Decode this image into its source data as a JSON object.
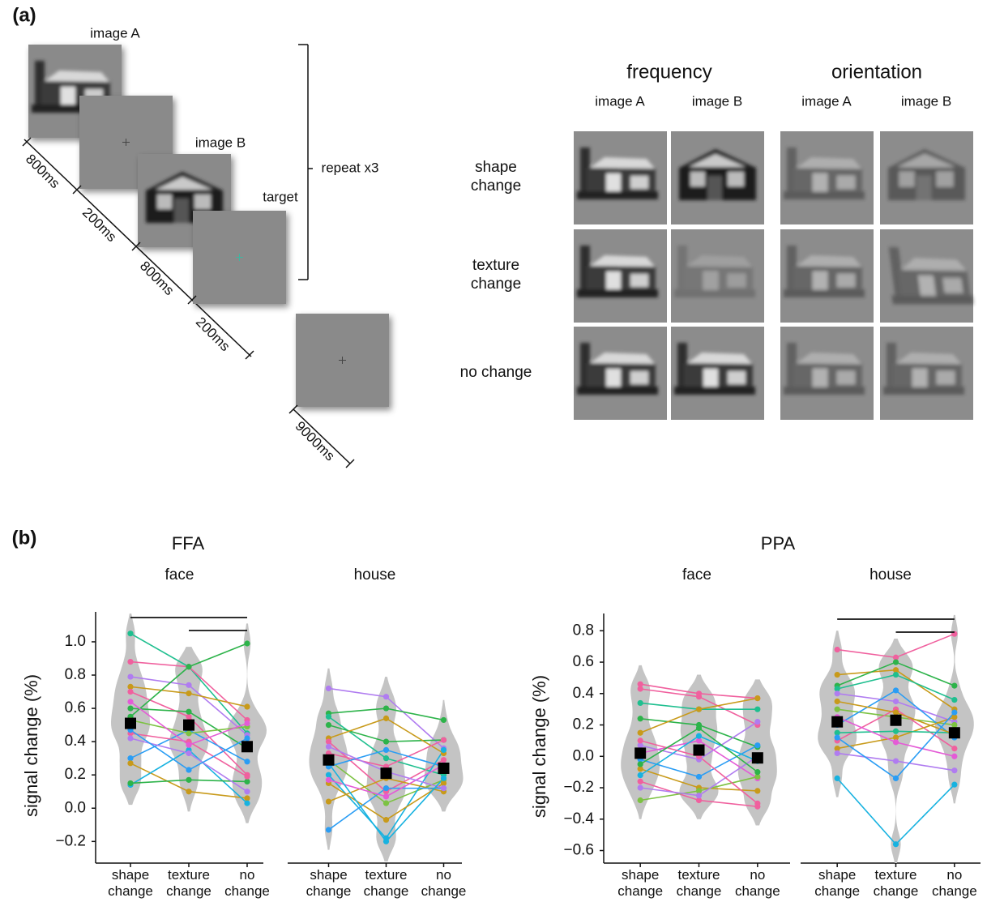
{
  "panel_a": {
    "label": "(a)",
    "sequence": {
      "screens": [
        "image A",
        "image B",
        "target"
      ],
      "durations": [
        "800ms",
        "200ms",
        "800ms",
        "200ms",
        "9000ms"
      ],
      "repeat": "repeat x3"
    },
    "conditions": {
      "groups": [
        "frequency",
        "orientation"
      ],
      "columns": [
        "image A",
        "image B",
        "image A",
        "image B"
      ],
      "rows": [
        "shape change",
        "texture change",
        "no change"
      ]
    }
  },
  "panel_b": {
    "label": "(b)",
    "regions": [
      "FFA",
      "PPA"
    ]
  },
  "chart_data": [
    {
      "type": "violin",
      "title": "face",
      "ylabel": "signal change (%)",
      "categories": [
        "shape change",
        "texture change",
        "no change"
      ],
      "ylim": [
        -0.33,
        1.18
      ],
      "yticks": [
        {
          "value": -0.2,
          "label": "−0.2"
        },
        {
          "value": 0,
          "label": "0.0"
        },
        0.2,
        0.4,
        0.6,
        0.8,
        {
          "value": 1,
          "label": "1.0"
        }
      ],
      "means": [
        0.51,
        0.5,
        0.37
      ],
      "significance": [
        [
          0,
          2
        ],
        [
          1,
          2
        ]
      ],
      "subjects": [
        {
          "color": "#1fbf8f",
          "values": [
            1.05,
            0.85,
            0.45
          ]
        },
        {
          "color": "#f0609e",
          "values": [
            0.88,
            0.85,
            0.53
          ]
        },
        {
          "color": "#b07cf0",
          "values": [
            0.79,
            0.74,
            0.44
          ]
        },
        {
          "color": "#c89a1a",
          "values": [
            0.73,
            0.69,
            0.61
          ]
        },
        {
          "color": "#f0609e",
          "values": [
            0.7,
            0.55,
            0.2
          ]
        },
        {
          "color": "#2db34a",
          "values": [
            0.6,
            0.58,
            0.36
          ]
        },
        {
          "color": "#2db34a",
          "values": [
            0.55,
            0.85,
            0.99
          ]
        },
        {
          "color": "#2a9df4",
          "values": [
            0.3,
            0.47,
            0.28
          ]
        },
        {
          "color": "#c89a1a",
          "values": [
            0.27,
            0.1,
            0.06
          ]
        },
        {
          "color": "#17b2e0",
          "values": [
            0.14,
            0.35,
            0.03
          ]
        },
        {
          "color": "#2db34a",
          "values": [
            0.15,
            0.17,
            0.16
          ]
        },
        {
          "color": "#f0609e",
          "values": [
            0.45,
            0.4,
            0.19
          ]
        },
        {
          "color": "#b07cf0",
          "values": [
            0.42,
            0.33,
            0.1
          ]
        },
        {
          "color": "#7cc242",
          "values": [
            0.53,
            0.45,
            0.49
          ]
        },
        {
          "color": "#2a9df4",
          "values": [
            0.47,
            0.23,
            0.42
          ]
        },
        {
          "color": "#e45bd6",
          "values": [
            0.64,
            0.38,
            0.51
          ]
        }
      ]
    },
    {
      "type": "violin",
      "title": "house",
      "categories": [
        "shape change",
        "texture change",
        "no change"
      ],
      "ylim": [
        -0.33,
        1.18
      ],
      "means": [
        0.29,
        0.21,
        0.24
      ],
      "subjects": [
        {
          "color": "#b07cf0",
          "values": [
            0.72,
            0.67,
            0.36
          ]
        },
        {
          "color": "#2db34a",
          "values": [
            0.57,
            0.6,
            0.53
          ]
        },
        {
          "color": "#1fbf8f",
          "values": [
            0.55,
            0.3,
            0.2
          ]
        },
        {
          "color": "#2db34a",
          "values": [
            0.5,
            0.4,
            0.41
          ]
        },
        {
          "color": "#c89a1a",
          "values": [
            0.42,
            0.54,
            0.33
          ]
        },
        {
          "color": "#f0609e",
          "values": [
            0.4,
            0.1,
            0.29
          ]
        },
        {
          "color": "#f0609e",
          "values": [
            0.33,
            0.25,
            0.41
          ]
        },
        {
          "color": "#7cc242",
          "values": [
            0.29,
            0.03,
            0.17
          ]
        },
        {
          "color": "#2a9df4",
          "values": [
            0.25,
            0.35,
            0.25
          ]
        },
        {
          "color": "#17b2e0",
          "values": [
            0.2,
            -0.18,
            0.35
          ]
        },
        {
          "color": "#c89a1a",
          "values": [
            0.15,
            -0.07,
            0.15
          ]
        },
        {
          "color": "#c89a1a",
          "values": [
            0.04,
            0.18,
            0.1
          ]
        },
        {
          "color": "#2a9df4",
          "values": [
            -0.13,
            0.12,
            0.12
          ]
        },
        {
          "color": "#e45bd6",
          "values": [
            0.17,
            0.07,
            0.26
          ]
        },
        {
          "color": "#b07cf0",
          "values": [
            0.37,
            0.22,
            0.12
          ]
        },
        {
          "color": "#17b2e0",
          "values": [
            0.27,
            -0.2,
            0.18
          ]
        }
      ]
    },
    {
      "type": "violin",
      "title": "face",
      "ylabel": "signal change (%)",
      "categories": [
        "shape change",
        "texture change",
        "no change"
      ],
      "ylim": [
        -0.68,
        0.91
      ],
      "yticks": [
        {
          "value": -0.6,
          "label": "−0.6"
        },
        {
          "value": -0.4,
          "label": "−0.4"
        },
        {
          "value": -0.2,
          "label": "−0.2"
        },
        {
          "value": 0,
          "label": "0.0"
        },
        0.2,
        0.4,
        0.6,
        0.8
      ],
      "means": [
        0.02,
        0.04,
        -0.01
      ],
      "subjects": [
        {
          "color": "#f0609e",
          "values": [
            0.46,
            0.4,
            0.37
          ]
        },
        {
          "color": "#f0609e",
          "values": [
            0.43,
            0.38,
            0.2
          ]
        },
        {
          "color": "#1fbf8f",
          "values": [
            0.34,
            0.3,
            0.3
          ]
        },
        {
          "color": "#2db34a",
          "values": [
            0.24,
            0.2,
            0.06
          ]
        },
        {
          "color": "#c89a1a",
          "values": [
            0.15,
            0.3,
            0.37
          ]
        },
        {
          "color": "#b07cf0",
          "values": [
            0.07,
            -0.02,
            0.22
          ]
        },
        {
          "color": "#e45bd6",
          "values": [
            0.02,
            0.1,
            -0.14
          ]
        },
        {
          "color": "#2a9df4",
          "values": [
            -0.02,
            -0.13,
            0.07
          ]
        },
        {
          "color": "#c89a1a",
          "values": [
            -0.08,
            -0.2,
            -0.22
          ]
        },
        {
          "color": "#f0609e",
          "values": [
            -0.16,
            -0.28,
            -0.32
          ]
        },
        {
          "color": "#7cc242",
          "values": [
            -0.28,
            -0.22,
            -0.13
          ]
        },
        {
          "color": "#17b2e0",
          "values": [
            -0.12,
            0.13,
            -0.03
          ]
        },
        {
          "color": "#b07cf0",
          "values": [
            -0.2,
            -0.25,
            0.0
          ]
        },
        {
          "color": "#f0609e",
          "values": [
            0.1,
            0.0,
            -0.3
          ]
        },
        {
          "color": "#2db34a",
          "values": [
            -0.05,
            0.18,
            -0.1
          ]
        }
      ]
    },
    {
      "type": "violin",
      "title": "house",
      "categories": [
        "shape change",
        "texture change",
        "no change"
      ],
      "ylim": [
        -0.68,
        0.91
      ],
      "means": [
        0.22,
        0.23,
        0.15
      ],
      "significance": [
        [
          0,
          2
        ],
        [
          1,
          2
        ]
      ],
      "subjects": [
        {
          "color": "#f0609e",
          "values": [
            0.68,
            0.63,
            0.78
          ]
        },
        {
          "color": "#c89a1a",
          "values": [
            0.52,
            0.55,
            0.3
          ]
        },
        {
          "color": "#2db34a",
          "values": [
            0.45,
            0.6,
            0.45
          ]
        },
        {
          "color": "#1fbf8f",
          "values": [
            0.43,
            0.52,
            0.36
          ]
        },
        {
          "color": "#b07cf0",
          "values": [
            0.4,
            0.35,
            0.22
          ]
        },
        {
          "color": "#7cc242",
          "values": [
            0.3,
            0.25,
            0.2
          ]
        },
        {
          "color": "#2a9df4",
          "values": [
            0.2,
            0.42,
            0.12
          ]
        },
        {
          "color": "#f0609e",
          "values": [
            0.1,
            0.3,
            0.05
          ]
        },
        {
          "color": "#c89a1a",
          "values": [
            0.05,
            0.12,
            0.25
          ]
        },
        {
          "color": "#17b2e0",
          "values": [
            -0.14,
            -0.56,
            -0.18
          ]
        },
        {
          "color": "#b07cf0",
          "values": [
            0.02,
            -0.03,
            -0.09
          ]
        },
        {
          "color": "#1fbf8f",
          "values": [
            0.15,
            0.16,
            0.15
          ]
        },
        {
          "color": "#e45bd6",
          "values": [
            0.25,
            0.09,
            0.0
          ]
        },
        {
          "color": "#c89a1a",
          "values": [
            0.35,
            0.28,
            0.14
          ]
        },
        {
          "color": "#2a9df4",
          "values": [
            0.12,
            -0.14,
            0.28
          ]
        }
      ]
    }
  ]
}
